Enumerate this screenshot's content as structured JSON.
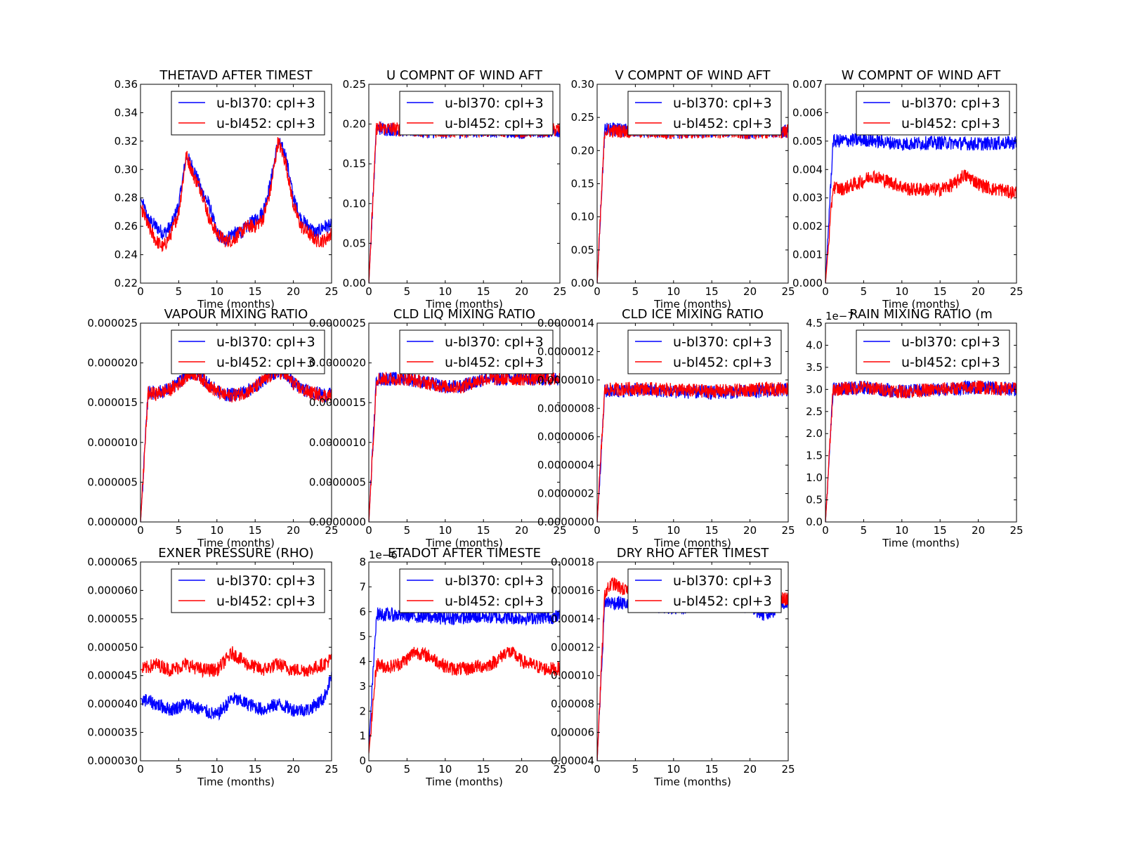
{
  "figure": {
    "background": "#ffffff",
    "series_colors": {
      "u-bl370: cpl+3": "#0000ff",
      "u-bl452: cpl+3": "#ff0000"
    }
  },
  "chart_data": [
    {
      "type": "line",
      "title": "THETAVD AFTER TIMEST",
      "xlabel": "Time (months)",
      "ylabel": "",
      "xlim": [
        0,
        25
      ],
      "ylim": [
        0.22,
        0.36
      ],
      "xticks": [
        "0",
        "5",
        "10",
        "15",
        "20",
        "25"
      ],
      "yticks": [
        "0.22",
        "0.24",
        "0.26",
        "0.28",
        "0.30",
        "0.32",
        "0.34",
        "0.36"
      ],
      "exponent_label": "",
      "legend": "top-right",
      "series": [
        {
          "name": "u-bl370: cpl+3",
          "color": "#0000ff",
          "x": [
            0,
            1,
            2,
            3,
            4,
            5,
            6,
            7,
            8,
            9,
            10,
            11,
            12,
            13,
            14,
            15,
            16,
            17,
            18,
            19,
            20,
            21,
            22,
            23,
            24,
            25
          ],
          "values": [
            0.28,
            0.265,
            0.26,
            0.255,
            0.26,
            0.275,
            0.31,
            0.3,
            0.285,
            0.275,
            0.255,
            0.25,
            0.255,
            0.255,
            0.26,
            0.265,
            0.27,
            0.29,
            0.32,
            0.31,
            0.28,
            0.265,
            0.26,
            0.255,
            0.26,
            0.26
          ]
        },
        {
          "name": "u-bl452: cpl+3",
          "color": "#ff0000",
          "x": [
            0,
            1,
            2,
            3,
            4,
            5,
            6,
            7,
            8,
            9,
            10,
            11,
            12,
            13,
            14,
            15,
            16,
            17,
            18,
            19,
            20,
            21,
            22,
            23,
            24,
            25
          ],
          "values": [
            0.275,
            0.26,
            0.25,
            0.245,
            0.255,
            0.27,
            0.31,
            0.295,
            0.285,
            0.265,
            0.255,
            0.25,
            0.25,
            0.255,
            0.26,
            0.26,
            0.265,
            0.285,
            0.32,
            0.305,
            0.275,
            0.26,
            0.255,
            0.25,
            0.25,
            0.255
          ]
        }
      ]
    },
    {
      "type": "line",
      "title": "U COMPNT OF WIND AFT",
      "xlabel": "Time (months)",
      "ylabel": "",
      "xlim": [
        0,
        25
      ],
      "ylim": [
        0,
        0.25
      ],
      "xticks": [
        "0",
        "5",
        "10",
        "15",
        "20",
        "25"
      ],
      "yticks": [
        "0.00",
        "0.05",
        "0.10",
        "0.15",
        "0.20",
        "0.25"
      ],
      "exponent_label": "",
      "legend": "top-right",
      "series": [
        {
          "name": "u-bl370: cpl+3",
          "color": "#0000ff",
          "x": [
            0,
            1,
            5,
            10,
            15,
            20,
            25
          ],
          "values": [
            0,
            0.195,
            0.192,
            0.19,
            0.192,
            0.19,
            0.192
          ]
        },
        {
          "name": "u-bl452: cpl+3",
          "color": "#ff0000",
          "x": [
            0,
            1,
            5,
            10,
            15,
            20,
            25
          ],
          "values": [
            0,
            0.195,
            0.193,
            0.191,
            0.193,
            0.191,
            0.193
          ]
        }
      ]
    },
    {
      "type": "line",
      "title": "V COMPNT OF WIND AFT",
      "xlabel": "Time (months)",
      "ylabel": "",
      "xlim": [
        0,
        25
      ],
      "ylim": [
        0,
        0.3
      ],
      "xticks": [
        "0",
        "5",
        "10",
        "15",
        "20",
        "25"
      ],
      "yticks": [
        "0.00",
        "0.05",
        "0.10",
        "0.15",
        "0.20",
        "0.25",
        "0.30"
      ],
      "exponent_label": "",
      "legend": "top-right",
      "series": [
        {
          "name": "u-bl370: cpl+3",
          "color": "#0000ff",
          "x": [
            0,
            1,
            5,
            10,
            15,
            20,
            25
          ],
          "values": [
            0,
            0.232,
            0.23,
            0.228,
            0.23,
            0.228,
            0.23
          ]
        },
        {
          "name": "u-bl452: cpl+3",
          "color": "#ff0000",
          "x": [
            0,
            1,
            5,
            10,
            15,
            20,
            25
          ],
          "values": [
            0,
            0.23,
            0.229,
            0.227,
            0.229,
            0.227,
            0.229
          ]
        }
      ]
    },
    {
      "type": "line",
      "title": "W COMPNT OF WIND AFT",
      "xlabel": "Time (months)",
      "ylabel": "",
      "xlim": [
        0,
        25
      ],
      "ylim": [
        0,
        0.007
      ],
      "xticks": [
        "0",
        "5",
        "10",
        "15",
        "20",
        "25"
      ],
      "yticks": [
        "0.000",
        "0.001",
        "0.002",
        "0.003",
        "0.004",
        "0.005",
        "0.006",
        "0.007"
      ],
      "exponent_label": "",
      "legend": "top-right",
      "series": [
        {
          "name": "u-bl370: cpl+3",
          "color": "#0000ff",
          "x": [
            0,
            1,
            5,
            10,
            15,
            20,
            25
          ],
          "values": [
            0,
            0.005,
            0.00505,
            0.0049,
            0.00495,
            0.0049,
            0.00495
          ]
        },
        {
          "name": "u-bl452: cpl+3",
          "color": "#ff0000",
          "x": [
            0,
            1,
            2,
            3,
            4,
            5,
            6,
            7,
            8,
            9,
            10,
            11,
            12,
            13,
            14,
            15,
            16,
            17,
            18,
            19,
            20,
            21,
            22,
            23,
            24,
            25
          ],
          "values": [
            0,
            0.0034,
            0.0033,
            0.0034,
            0.0035,
            0.0036,
            0.0038,
            0.0037,
            0.0036,
            0.0035,
            0.0034,
            0.0033,
            0.0033,
            0.0033,
            0.0033,
            0.0033,
            0.0034,
            0.0035,
            0.0038,
            0.0037,
            0.0035,
            0.0034,
            0.0033,
            0.0033,
            0.0032,
            0.0032
          ]
        }
      ]
    },
    {
      "type": "line",
      "title": "VAPOUR MIXING RATIO",
      "xlabel": "Time (months)",
      "ylabel": "",
      "xlim": [
        0,
        25
      ],
      "ylim": [
        0,
        2.5e-05
      ],
      "xticks": [
        "0",
        "5",
        "10",
        "15",
        "20",
        "25"
      ],
      "yticks": [
        "0.000000",
        "0.000005",
        "0.000010",
        "0.000015",
        "0.000020",
        "0.000025"
      ],
      "exponent_label": "",
      "legend": "top-right",
      "series": [
        {
          "name": "u-bl370: cpl+3",
          "color": "#0000ff",
          "x": [
            0,
            1,
            2,
            3,
            4,
            5,
            6,
            7,
            8,
            9,
            10,
            11,
            12,
            13,
            14,
            15,
            16,
            17,
            18,
            19,
            20,
            21,
            22,
            23,
            24,
            25
          ],
          "values": [
            0,
            1.63e-05,
            1.62e-05,
            1.65e-05,
            1.68e-05,
            1.75e-05,
            1.85e-05,
            1.88e-05,
            1.82e-05,
            1.72e-05,
            1.65e-05,
            1.6e-05,
            1.6e-05,
            1.62e-05,
            1.65e-05,
            1.7e-05,
            1.78e-05,
            1.85e-05,
            1.9e-05,
            1.86e-05,
            1.75e-05,
            1.68e-05,
            1.64e-05,
            1.62e-05,
            1.6e-05,
            1.6e-05
          ]
        },
        {
          "name": "u-bl452: cpl+3",
          "color": "#ff0000",
          "x": [
            0,
            1,
            2,
            3,
            4,
            5,
            6,
            7,
            8,
            9,
            10,
            11,
            12,
            13,
            14,
            15,
            16,
            17,
            18,
            19,
            20,
            21,
            22,
            23,
            24,
            25
          ],
          "values": [
            0,
            1.62e-05,
            1.61e-05,
            1.64e-05,
            1.67e-05,
            1.74e-05,
            1.84e-05,
            1.87e-05,
            1.81e-05,
            1.71e-05,
            1.64e-05,
            1.59e-05,
            1.59e-05,
            1.61e-05,
            1.64e-05,
            1.69e-05,
            1.77e-05,
            1.84e-05,
            1.89e-05,
            1.85e-05,
            1.74e-05,
            1.67e-05,
            1.63e-05,
            1.61e-05,
            1.59e-05,
            1.59e-05
          ]
        }
      ]
    },
    {
      "type": "line",
      "title": "CLD LIQ MIXING RATIO",
      "xlabel": "Time (months)",
      "ylabel": "",
      "xlim": [
        0,
        25
      ],
      "ylim": [
        0,
        2.5e-06
      ],
      "xticks": [
        "0",
        "5",
        "10",
        "15",
        "20",
        "25"
      ],
      "yticks": [
        "0.0000000",
        "0.0000005",
        "0.0000010",
        "0.0000015",
        "0.0000020",
        "0.0000025"
      ],
      "exponent_label": "",
      "legend": "top-right",
      "series": [
        {
          "name": "u-bl370: cpl+3",
          "color": "#0000ff",
          "x": [
            0,
            1,
            5,
            10,
            12,
            15,
            20,
            25
          ],
          "values": [
            0,
            1.8e-06,
            1.8e-06,
            1.7e-06,
            1.7e-06,
            1.8e-06,
            1.8e-06,
            1.8e-06
          ]
        },
        {
          "name": "u-bl452: cpl+3",
          "color": "#ff0000",
          "x": [
            0,
            1,
            5,
            10,
            12,
            15,
            20,
            25
          ],
          "values": [
            0,
            1.8e-06,
            1.8e-06,
            1.7e-06,
            1.7e-06,
            1.8e-06,
            1.8e-06,
            1.8e-06
          ]
        }
      ]
    },
    {
      "type": "line",
      "title": "CLD ICE MIXING RATIO",
      "xlabel": "Time (months)",
      "ylabel": "",
      "xlim": [
        0,
        25
      ],
      "ylim": [
        0,
        1.4e-06
      ],
      "xticks": [
        "0",
        "5",
        "10",
        "15",
        "20",
        "25"
      ],
      "yticks": [
        "0.0000000",
        "0.0000002",
        "0.0000004",
        "0.0000006",
        "0.0000008",
        "0.0000010",
        "0.0000012",
        "0.0000014"
      ],
      "exponent_label": "",
      "legend": "top-right",
      "series": [
        {
          "name": "u-bl370: cpl+3",
          "color": "#0000ff",
          "x": [
            0,
            1,
            5,
            10,
            15,
            20,
            25
          ],
          "values": [
            0,
            9.2e-07,
            9.3e-07,
            9.2e-07,
            9.1e-07,
            9.2e-07,
            9.3e-07
          ]
        },
        {
          "name": "u-bl452: cpl+3",
          "color": "#ff0000",
          "x": [
            0,
            1,
            5,
            10,
            15,
            20,
            25
          ],
          "values": [
            0,
            9.3e-07,
            9.4e-07,
            9.3e-07,
            9.2e-07,
            9.3e-07,
            9.4e-07
          ]
        }
      ]
    },
    {
      "type": "line",
      "title": "RAIN MIXING RATIO (m",
      "xlabel": "Time (months)",
      "ylabel": "",
      "xlim": [
        0,
        25
      ],
      "ylim": [
        0,
        4.5
      ],
      "xticks": [
        "0",
        "5",
        "10",
        "15",
        "20",
        "25"
      ],
      "yticks": [
        "0.0",
        "0.5",
        "1.0",
        "1.5",
        "2.0",
        "2.5",
        "3.0",
        "3.5",
        "4.0",
        "4.5"
      ],
      "exponent_label": "1e−7",
      "legend": "top-right",
      "series": [
        {
          "name": "u-bl370: cpl+3",
          "color": "#0000ff",
          "x": [
            0,
            1,
            5,
            10,
            15,
            20,
            25
          ],
          "values": [
            0,
            3.0,
            3.05,
            2.95,
            3.0,
            3.05,
            3.0
          ]
        },
        {
          "name": "u-bl452: cpl+3",
          "color": "#ff0000",
          "x": [
            0,
            1,
            5,
            10,
            15,
            20,
            25
          ],
          "values": [
            0,
            3.0,
            3.05,
            2.95,
            3.0,
            3.05,
            3.0
          ]
        }
      ]
    },
    {
      "type": "line",
      "title": "EXNER PRESSURE (RHO)",
      "xlabel": "Time (months)",
      "ylabel": "",
      "xlim": [
        0,
        25
      ],
      "ylim": [
        3e-05,
        6.5e-05
      ],
      "xticks": [
        "0",
        "5",
        "10",
        "15",
        "20",
        "25"
      ],
      "yticks": [
        "0.000030",
        "0.000035",
        "0.000040",
        "0.000045",
        "0.000050",
        "0.000055",
        "0.000060",
        "0.000065"
      ],
      "exponent_label": "",
      "legend": "top-right",
      "series": [
        {
          "name": "u-bl370: cpl+3",
          "color": "#0000ff",
          "x": [
            0,
            2,
            4,
            6,
            8,
            10,
            12,
            14,
            16,
            18,
            20,
            22,
            24,
            25
          ],
          "values": [
            4.1e-05,
            4e-05,
            3.9e-05,
            4e-05,
            3.9e-05,
            3.8e-05,
            4.1e-05,
            4e-05,
            3.9e-05,
            4e-05,
            3.9e-05,
            3.9e-05,
            4.1e-05,
            4.5e-05
          ]
        },
        {
          "name": "u-bl452: cpl+3",
          "color": "#ff0000",
          "x": [
            0,
            2,
            4,
            6,
            8,
            10,
            12,
            14,
            16,
            18,
            20,
            22,
            24,
            25
          ],
          "values": [
            4.6e-05,
            4.7e-05,
            4.6e-05,
            4.7e-05,
            4.6e-05,
            4.6e-05,
            4.9e-05,
            4.7e-05,
            4.6e-05,
            4.7e-05,
            4.6e-05,
            4.6e-05,
            4.7e-05,
            4.8e-05
          ]
        }
      ]
    },
    {
      "type": "line",
      "title": "ETADOT AFTER TIMESTE",
      "xlabel": "Time (months)",
      "ylabel": "",
      "xlim": [
        0,
        25
      ],
      "ylim": [
        0,
        8
      ],
      "xticks": [
        "0",
        "5",
        "10",
        "15",
        "20",
        "25"
      ],
      "yticks": [
        "0",
        "1",
        "2",
        "3",
        "4",
        "5",
        "6",
        "7",
        "8"
      ],
      "exponent_label": "1e−6",
      "legend": "top-right",
      "series": [
        {
          "name": "u-bl370: cpl+3",
          "color": "#0000ff",
          "x": [
            0,
            1,
            5,
            10,
            15,
            20,
            25
          ],
          "values": [
            0.5,
            5.9,
            5.85,
            5.75,
            5.8,
            5.75,
            5.8
          ]
        },
        {
          "name": "u-bl452: cpl+3",
          "color": "#ff0000",
          "x": [
            0,
            1,
            2,
            3,
            4,
            5,
            6,
            7,
            8,
            9,
            10,
            11,
            12,
            13,
            14,
            15,
            16,
            17,
            18,
            19,
            20,
            21,
            22,
            23,
            24,
            25
          ],
          "values": [
            0.3,
            3.9,
            3.8,
            3.8,
            3.9,
            4.1,
            4.4,
            4.3,
            4.2,
            4.0,
            3.8,
            3.7,
            3.7,
            3.7,
            3.8,
            3.8,
            3.9,
            4.1,
            4.4,
            4.3,
            4.0,
            3.9,
            3.8,
            3.7,
            3.7,
            3.7
          ]
        }
      ]
    },
    {
      "type": "line",
      "title": "DRY RHO AFTER TIMEST",
      "xlabel": "Time (months)",
      "ylabel": "",
      "xlim": [
        0,
        25
      ],
      "ylim": [
        4e-05,
        0.00018
      ],
      "xticks": [
        "0",
        "5",
        "10",
        "15",
        "20",
        "25"
      ],
      "yticks": [
        "0.00004",
        "0.00006",
        "0.00008",
        "0.00010",
        "0.00012",
        "0.00014",
        "0.00016",
        "0.00018"
      ],
      "exponent_label": "",
      "legend": "top-right",
      "series": [
        {
          "name": "u-bl370: cpl+3",
          "color": "#0000ff",
          "x": [
            0,
            1,
            5,
            10,
            15,
            20,
            22,
            25
          ],
          "values": [
            4e-05,
            0.000152,
            0.00015,
            0.000148,
            0.00015,
            0.000149,
            0.000142,
            0.000152
          ]
        },
        {
          "name": "u-bl452: cpl+3",
          "color": "#ff0000",
          "x": [
            0,
            1,
            2,
            5,
            10,
            15,
            20,
            25
          ],
          "values": [
            4e-05,
            0.000158,
            0.000165,
            0.000156,
            0.000152,
            0.000155,
            0.000152,
            0.000154
          ]
        }
      ]
    }
  ]
}
